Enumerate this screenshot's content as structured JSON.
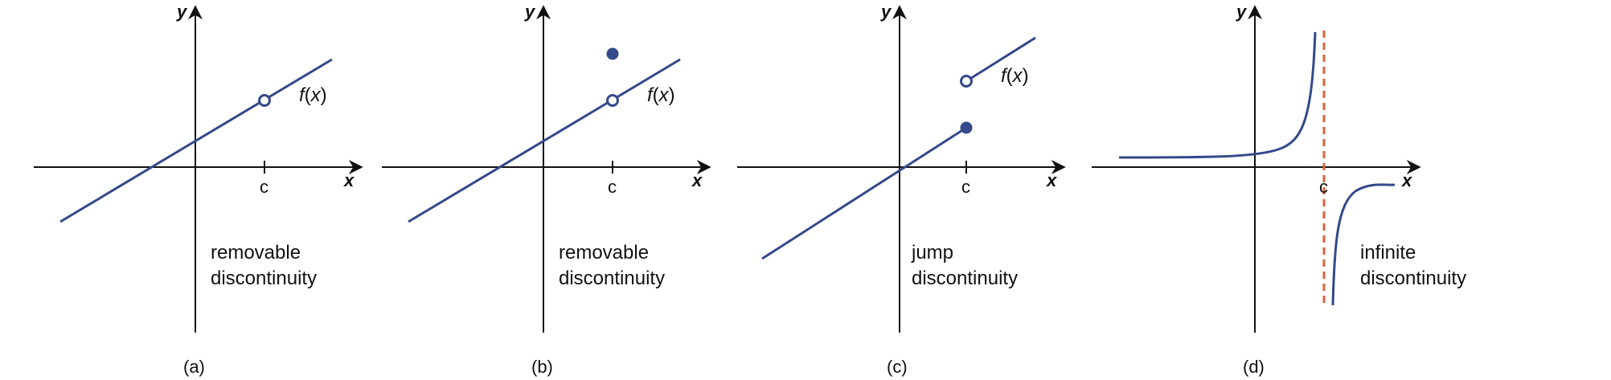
{
  "colors": {
    "curve": "#34498a",
    "axis": "#111111",
    "asymptote": "#d9633a"
  },
  "panels": [
    {
      "id": "a",
      "caption": "(a)",
      "y_label": "y",
      "x_label": "x",
      "c_label": "c",
      "function_label": {
        "f": "f",
        "open": "(",
        "var": "x",
        "close": ")"
      },
      "description": [
        "removable",
        "discontinuity"
      ],
      "kind": "removable",
      "features": [
        "line",
        "open-circle"
      ]
    },
    {
      "id": "b",
      "caption": "(b)",
      "y_label": "y",
      "x_label": "x",
      "c_label": "c",
      "function_label": {
        "f": "f",
        "open": "(",
        "var": "x",
        "close": ")"
      },
      "description": [
        "removable",
        "discontinuity"
      ],
      "kind": "removable",
      "features": [
        "line",
        "open-circle",
        "filled-point"
      ]
    },
    {
      "id": "c",
      "caption": "(c)",
      "y_label": "y",
      "x_label": "x",
      "c_label": "c",
      "function_label": {
        "f": "f",
        "open": "(",
        "var": "x",
        "close": ")"
      },
      "description": [
        "jump",
        "discontinuity"
      ],
      "kind": "jump",
      "features": [
        "line-left",
        "filled-point",
        "open-circle",
        "line-right"
      ]
    },
    {
      "id": "d",
      "caption": "(d)",
      "y_label": "y",
      "x_label": "x",
      "c_label": "c",
      "description": [
        "infinite",
        "discontinuity"
      ],
      "kind": "infinite",
      "features": [
        "curve-left",
        "curve-right",
        "asymptote"
      ]
    }
  ]
}
